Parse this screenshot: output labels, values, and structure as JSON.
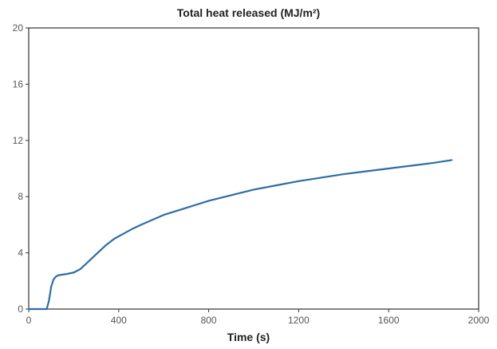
{
  "chart_data": {
    "type": "line",
    "title": "Total heat released  (MJ/m²)",
    "xlabel": "Time (s)",
    "ylabel": "",
    "xlim": [
      0,
      2000
    ],
    "ylim": [
      0,
      20
    ],
    "x_ticks": [
      {
        "value": 0,
        "label": "0"
      },
      {
        "value": 400,
        "label": "400"
      },
      {
        "value": 800,
        "label": "800"
      },
      {
        "value": 1200,
        "label": "1200"
      },
      {
        "value": 1600,
        "label": "1600"
      },
      {
        "value": 2000,
        "label": "2000"
      }
    ],
    "y_ticks": [
      {
        "value": 0,
        "label": "0"
      },
      {
        "value": 4,
        "label": "4"
      },
      {
        "value": 8,
        "label": "8"
      },
      {
        "value": 12,
        "label": "12"
      },
      {
        "value": 16,
        "label": "16"
      },
      {
        "value": 20,
        "label": "20"
      }
    ],
    "grid": false,
    "legend": "none",
    "series": [
      {
        "color": "#2e6da4",
        "x": [
          0,
          80,
          90,
          100,
          110,
          120,
          130,
          150,
          170,
          200,
          230,
          260,
          300,
          340,
          380,
          420,
          460,
          500,
          550,
          600,
          650,
          700,
          750,
          800,
          850,
          900,
          950,
          1000,
          1100,
          1200,
          1300,
          1400,
          1500,
          1600,
          1700,
          1800,
          1880
        ],
        "y": [
          0,
          0,
          0.6,
          1.6,
          2.1,
          2.3,
          2.4,
          2.45,
          2.5,
          2.6,
          2.85,
          3.3,
          3.9,
          4.5,
          5.0,
          5.35,
          5.7,
          6.0,
          6.35,
          6.7,
          6.95,
          7.2,
          7.45,
          7.7,
          7.9,
          8.1,
          8.3,
          8.5,
          8.8,
          9.1,
          9.35,
          9.6,
          9.8,
          10.0,
          10.2,
          10.4,
          10.6
        ]
      }
    ]
  }
}
